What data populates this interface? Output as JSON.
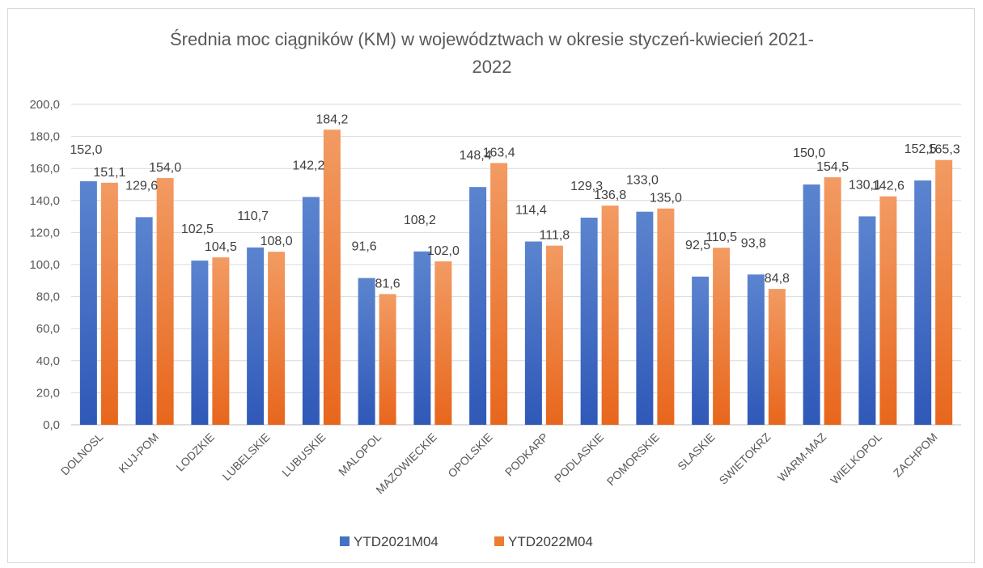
{
  "chart_data": {
    "type": "bar",
    "title": "Średnia moc ciągników (KM) w województwach w okresie styczeń-kwiecień 2021-2022",
    "title_lines": [
      "Średnia moc ciągników (KM) w województwach w okresie styczeń-kwiecień 2021-",
      "2022"
    ],
    "xlabel": "",
    "ylabel": "",
    "ylim": [
      0,
      200
    ],
    "ytick_step": 20,
    "ytick_labels": [
      "0,0",
      "20,0",
      "40,0",
      "60,0",
      "80,0",
      "100,0",
      "120,0",
      "140,0",
      "160,0",
      "180,0",
      "200,0"
    ],
    "grid": true,
    "legend_position": "bottom",
    "categories": [
      "DOLNOSL",
      "KUJ-POM",
      "LODZKIE",
      "LUBELSKIE",
      "LUBUSKIE",
      "MALOPOL",
      "MAZOWIECKIE",
      "OPOLSKIE",
      "PODKARP",
      "PODLASKIE",
      "POMORSKIE",
      "SLASKIE",
      "SWIETOKRZ",
      "WARM-MAZ",
      "WIELKOPOL",
      "ZACHPOM"
    ],
    "series": [
      {
        "name": "YTD2021M04",
        "color": "#4472c4",
        "values": [
          152.0,
          129.6,
          102.5,
          110.7,
          142.2,
          91.6,
          108.2,
          148.4,
          114.4,
          129.3,
          133.0,
          92.5,
          93.8,
          150.0,
          130.1,
          152.5
        ],
        "labels": [
          "152,0",
          "129,6",
          "102,5",
          "110,7",
          "142,2",
          "91,6",
          "108,2",
          "148,4",
          "114,4",
          "129,3",
          "133,0",
          "92,5",
          "93,8",
          "150,0",
          "130,1",
          "152,5"
        ]
      },
      {
        "name": "YTD2022M04",
        "color": "#ed7d31",
        "values": [
          151.1,
          154.0,
          104.5,
          108.0,
          184.2,
          81.6,
          102.0,
          163.4,
          111.8,
          136.8,
          135.0,
          110.5,
          84.8,
          154.5,
          142.6,
          165.3
        ],
        "labels": [
          "151,1",
          "154,0",
          "104,5",
          "108,0",
          "184,2",
          "81,6",
          "102,0",
          "163,4",
          "111,8",
          "136,8",
          "135,0",
          "110,5",
          "84,8",
          "154,5",
          "142,6",
          "165,3"
        ]
      }
    ]
  }
}
